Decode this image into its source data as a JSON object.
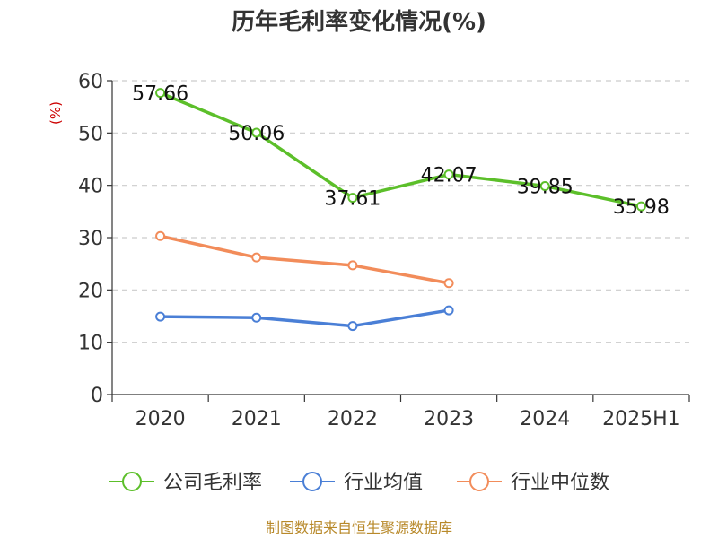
{
  "chart_data": {
    "type": "line",
    "title": "历年毛利率变化情况(%)",
    "ylabel": "(%)",
    "xlabel": "",
    "ylim": [
      0,
      60
    ],
    "y_ticks": [
      0,
      10,
      20,
      30,
      40,
      50,
      60
    ],
    "categories": [
      "2020",
      "2021",
      "2022",
      "2023",
      "2024",
      "2025H1"
    ],
    "grid": true,
    "legend_position": "bottom",
    "series": [
      {
        "name": "公司毛利率",
        "color": "#5cbf2a",
        "values": [
          57.66,
          50.06,
          37.61,
          42.07,
          39.85,
          35.98
        ],
        "labels": [
          "57.66",
          "50.06",
          "37.61",
          "42.07",
          "39.85",
          "35.98"
        ],
        "show_labels": true
      },
      {
        "name": "行业均值",
        "color": "#4a7fd6",
        "values": [
          14.9,
          14.7,
          13.1,
          16.1,
          null,
          null
        ],
        "show_labels": false
      },
      {
        "name": "行业中位数",
        "color": "#f28c5a",
        "values": [
          30.3,
          26.2,
          24.7,
          21.3,
          null,
          null
        ],
        "show_labels": false
      }
    ],
    "source": "制图数据来自恒生聚源数据库"
  }
}
